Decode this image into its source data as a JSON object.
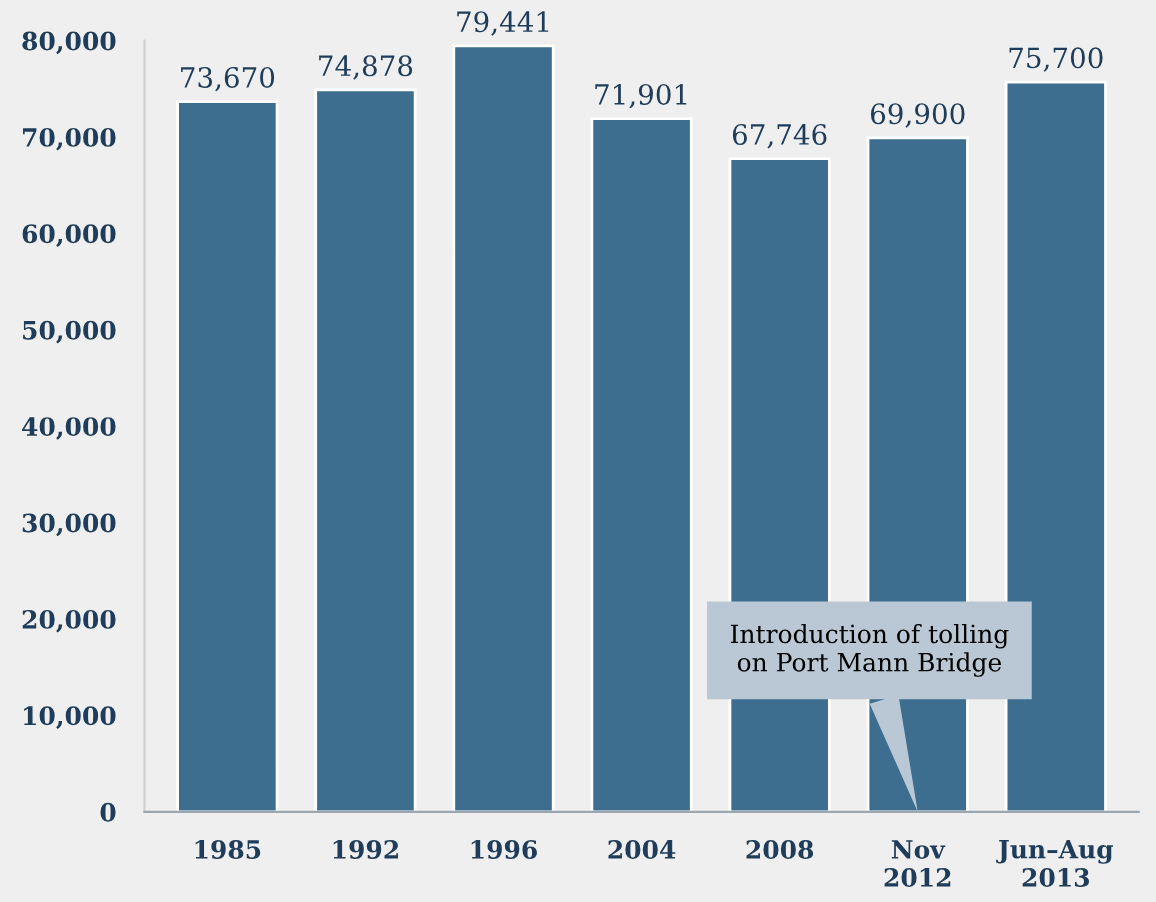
{
  "chart_data": {
    "type": "bar",
    "categories": [
      "1985",
      "1992",
      "1996",
      "2004",
      "2008",
      "Nov\n2012",
      "Jun–Aug\n2013"
    ],
    "values": [
      73670,
      74878,
      79441,
      71901,
      67746,
      69900,
      75700
    ],
    "value_labels": [
      "73,670",
      "74,878",
      "79,441",
      "71,901",
      "67,746",
      "69,900",
      "75,700"
    ],
    "color": "#3d6e8f",
    "ylim": [
      0,
      80000
    ],
    "yticks": [
      {
        "value": 0,
        "label": "0"
      },
      {
        "value": 10000,
        "label": "10,000"
      },
      {
        "value": 20000,
        "label": "20,000"
      },
      {
        "value": 30000,
        "label": "30,000"
      },
      {
        "value": 40000,
        "label": "40,000"
      },
      {
        "value": 50000,
        "label": "50,000"
      },
      {
        "value": 60000,
        "label": "60,000"
      },
      {
        "value": 70000,
        "label": "70,000"
      },
      {
        "value": 80000,
        "label": "80,000"
      }
    ],
    "annotations": [
      {
        "text": "Introduction of tolling\non Port Mann Bridge",
        "x": "Nov\n2012",
        "y": 0
      }
    ],
    "grid": false
  }
}
